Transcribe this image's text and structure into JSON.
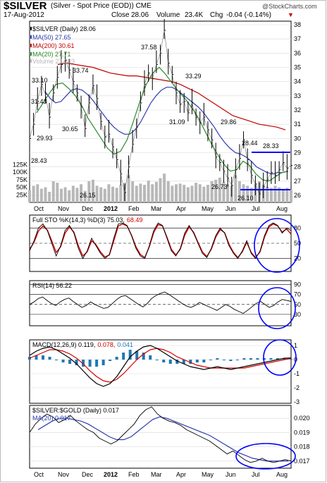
{
  "header": {
    "symbol": "$SILVER",
    "subtitle": "(Silver - Spot Price (EOD)) CME",
    "watermark": "@StockCharts.com",
    "date": "17-Aug-2012",
    "close_label": "Close",
    "close_value": "28.06",
    "volume_label": "Volume",
    "volume_value": "23.4K",
    "chg_label": "Chg",
    "chg_value": "-0.04 (-0.14%)"
  },
  "colors": {
    "price": "#000000",
    "ma50": "#2e3bb0",
    "ma200": "#c00000",
    "ma20": "#2c8a2c",
    "volume": "#b8b8b8",
    "oscillator_fast": "#000000",
    "oscillator_slow": "#d00000",
    "macd_hist": "#1f78b4",
    "annotation": "#0000ff"
  },
  "chart_data": [
    {
      "type": "line",
      "panel": "price",
      "legend": [
        {
          "key": "price",
          "text": "$SILVER (Daily) 28.06"
        },
        {
          "key": "ma50",
          "text": "MA(50) 27.65"
        },
        {
          "key": "ma200",
          "text": "MA(200) 30.61"
        },
        {
          "key": "ma20",
          "text": "MA(20) 27.71"
        },
        {
          "key": "volume",
          "text": "Volume 23,383"
        }
      ],
      "x_labels": [
        "Oct",
        "Nov",
        "Dec",
        "2012",
        "Feb",
        "Mar",
        "Apr",
        "May",
        "Jun",
        "Jul",
        "Aug"
      ],
      "y_ticks": [
        26,
        27,
        28,
        29,
        30,
        31,
        32,
        33,
        34,
        35,
        36,
        37,
        38
      ],
      "ylim": [
        26,
        38
      ],
      "volume_ticks": [
        "125K",
        "100K",
        "75K",
        "50K",
        "25K"
      ],
      "annotations": [
        "33.10",
        "31.43",
        "29.93",
        "30.65",
        "33.74",
        "26.15",
        "37.58",
        "33.29",
        "31.09",
        "29.86",
        "26.73",
        "28.44",
        "28.33",
        "26.10",
        "28.43"
      ],
      "series": [
        {
          "name": "$SILVER (Daily)",
          "values": [
            30.0,
            31.0,
            32.6,
            33.8,
            33.1,
            31.5,
            33.2,
            34.3,
            35.2,
            35.5,
            34.8,
            34.0,
            33.2,
            32.2,
            30.7,
            32.5,
            33.7,
            32.8,
            31.2,
            30.1,
            30.3,
            29.4,
            28.5,
            27.5,
            26.2,
            28.0,
            29.6,
            30.8,
            32.5,
            33.8,
            34.6,
            34.2,
            35.2,
            36.0,
            37.6,
            35.3,
            34.5,
            33.2,
            32.4,
            32.6,
            31.8,
            32.5,
            31.5,
            31.1,
            31.5,
            30.6,
            29.9,
            28.7,
            28.3,
            27.7,
            27.2,
            26.7,
            27.8,
            28.6,
            29.9,
            28.5,
            27.4,
            26.8,
            26.1,
            26.6,
            27.1,
            27.6,
            27.4,
            27.8,
            28.3,
            27.9,
            28.1
          ]
        },
        {
          "name": "MA(50)",
          "values": [
            33.3,
            32.8,
            32.5,
            32.6,
            33.0,
            33.4,
            33.5,
            33.4,
            33.1,
            32.7,
            32.2,
            31.7,
            31.2,
            30.8,
            30.5,
            30.3,
            30.3,
            30.6,
            31.1,
            31.8,
            32.5,
            33.0,
            33.4,
            33.6,
            33.6,
            33.4,
            33.1,
            32.8,
            32.5,
            32.2,
            31.8,
            31.3,
            30.8,
            30.2,
            29.7,
            29.3,
            29.0,
            28.9,
            28.7,
            28.4,
            28.0,
            27.8,
            27.6,
            27.5,
            27.6,
            27.6,
            27.7
          ]
        },
        {
          "name": "MA(200)",
          "values": [
            35.2,
            35.3,
            35.2,
            35.1,
            35.0,
            34.8,
            34.6,
            34.5,
            34.4,
            34.4,
            34.3,
            34.2,
            34.1,
            34.0,
            33.8,
            33.5,
            33.2,
            32.8,
            32.4,
            32.0,
            31.6,
            31.4,
            31.2,
            31.0,
            30.9,
            30.8,
            30.6
          ]
        },
        {
          "name": "MA(20)",
          "values": [
            31.8,
            32.5,
            33.2,
            33.8,
            33.9,
            33.5,
            33.0,
            32.3,
            31.4,
            30.7,
            30.0,
            29.3,
            28.9,
            29.1,
            29.9,
            31.2,
            32.6,
            33.8,
            34.6,
            35.0,
            34.5,
            33.9,
            33.3,
            32.8,
            32.2,
            31.5,
            30.6,
            29.7,
            28.9,
            28.2,
            27.7,
            27.8,
            28.4,
            28.1,
            27.5,
            27.1,
            27.0,
            27.3,
            27.6,
            27.7
          ]
        },
        {
          "name": "Volume",
          "values": [
            40,
            55,
            60,
            45,
            50,
            35,
            70,
            65,
            45,
            50,
            40,
            55,
            48,
            60,
            38,
            70,
            75,
            55,
            50,
            45,
            60,
            52,
            48,
            58,
            65,
            90,
            70,
            55,
            62,
            58,
            72,
            60,
            68,
            80,
            95,
            70,
            55,
            60,
            62,
            58,
            50,
            55,
            65,
            60,
            52,
            58,
            70,
            75,
            82,
            68,
            60,
            55,
            90,
            70,
            60,
            55,
            48,
            62,
            70,
            58,
            52,
            48,
            55,
            50,
            45,
            48,
            42
          ]
        }
      ]
    },
    {
      "type": "line",
      "panel": "full-sto",
      "legend": [
        {
          "key": "oscillator_fast",
          "text": "Full STO %K(14,3) %D(3) 75.03,"
        },
        {
          "key": "oscillator_slow",
          "text": "68.49"
        }
      ],
      "y_ticks": [
        20,
        50,
        80
      ],
      "ylim": [
        0,
        100
      ],
      "series": [
        {
          "name": "%K",
          "values": [
            35,
            55,
            80,
            88,
            75,
            50,
            25,
            45,
            75,
            85,
            70,
            40,
            20,
            35,
            60,
            45,
            30,
            20,
            28,
            60,
            88,
            90,
            85,
            65,
            40,
            25,
            20,
            45,
            75,
            90,
            85,
            60,
            35,
            25,
            40,
            70,
            85,
            70,
            50,
            30,
            22,
            40,
            65,
            80,
            70,
            45,
            30,
            20,
            35,
            55,
            30,
            20,
            35,
            65,
            85,
            90,
            85,
            70,
            80,
            75
          ]
        },
        {
          "name": "%D",
          "values": [
            38,
            52,
            74,
            84,
            76,
            55,
            32,
            43,
            70,
            82,
            72,
            45,
            25,
            33,
            55,
            47,
            33,
            23,
            27,
            55,
            84,
            88,
            84,
            66,
            43,
            28,
            22,
            43,
            71,
            87,
            84,
            62,
            38,
            27,
            38,
            66,
            82,
            72,
            52,
            33,
            24,
            38,
            62,
            77,
            71,
            48,
            32,
            22,
            33,
            52,
            32,
            22,
            33,
            62,
            82,
            88,
            84,
            72,
            78,
            68
          ]
        }
      ]
    },
    {
      "type": "line",
      "panel": "rsi",
      "legend": [
        {
          "key": "price",
          "text": "RSI(14) 56.22"
        }
      ],
      "y_ticks": [
        30,
        50,
        70,
        90
      ],
      "ylim": [
        10,
        95
      ],
      "series": [
        {
          "name": "RSI(14)",
          "values": [
            50,
            55,
            62,
            65,
            58,
            52,
            48,
            55,
            60,
            63,
            56,
            50,
            44,
            48,
            55,
            50,
            46,
            42,
            44,
            52,
            60,
            66,
            68,
            62,
            56,
            50,
            45,
            52,
            62,
            68,
            72,
            75,
            70,
            64,
            58,
            52,
            47,
            44,
            48,
            54,
            50,
            46,
            42,
            38,
            44,
            50,
            46,
            40,
            36,
            32,
            38,
            45,
            52,
            56,
            50,
            44,
            48,
            55,
            60,
            58,
            56
          ]
        }
      ]
    },
    {
      "type": "bar",
      "panel": "macd",
      "legend": [
        {
          "key": "price",
          "text": "MACD(12,26,9) 0.119,"
        },
        {
          "key": "oscillator_slow",
          "text": "0.078,"
        },
        {
          "key": "macd_hist",
          "text": "0.041"
        }
      ],
      "y_ticks": [
        1,
        0,
        -1,
        -2,
        -3
      ],
      "ylim": [
        -3,
        1.3
      ],
      "series": [
        {
          "name": "MACD",
          "values": [
            0.3,
            0.6,
            0.8,
            0.9,
            0.7,
            0.4,
            0.1,
            -0.3,
            -0.8,
            -1.3,
            -1.7,
            -1.9,
            -1.7,
            -1.2,
            -0.5,
            0.2,
            0.6,
            0.9,
            1.0,
            0.8,
            0.5,
            0.2,
            -0.1,
            -0.3,
            -0.5,
            -0.6,
            -0.7,
            -0.6,
            -0.5,
            -0.6,
            -0.7,
            -0.6,
            -0.5,
            -0.4,
            -0.3,
            -0.2,
            -0.1,
            0.0,
            0.1,
            0.12
          ]
        },
        {
          "name": "Signal",
          "values": [
            0.1,
            0.3,
            0.5,
            0.7,
            0.7,
            0.6,
            0.4,
            0.1,
            -0.3,
            -0.8,
            -1.2,
            -1.5,
            -1.6,
            -1.4,
            -1.0,
            -0.5,
            0.0,
            0.4,
            0.7,
            0.8,
            0.7,
            0.5,
            0.2,
            0.0,
            -0.2,
            -0.4,
            -0.5,
            -0.6,
            -0.6,
            -0.6,
            -0.6,
            -0.6,
            -0.6,
            -0.5,
            -0.4,
            -0.3,
            -0.2,
            -0.1,
            0.0,
            0.08
          ]
        },
        {
          "name": "Histogram",
          "values": [
            0.2,
            0.3,
            0.3,
            0.2,
            0.0,
            -0.2,
            -0.3,
            -0.4,
            -0.5,
            -0.5,
            -0.5,
            -0.4,
            -0.1,
            0.2,
            0.5,
            0.7,
            0.6,
            0.5,
            0.3,
            0.0,
            -0.2,
            -0.3,
            -0.3,
            -0.3,
            -0.3,
            -0.2,
            -0.2,
            0.0,
            0.1,
            0.0,
            -0.1,
            0.0,
            0.1,
            0.1,
            0.1,
            0.1,
            0.1,
            0.1,
            0.1,
            0.04
          ]
        }
      ]
    },
    {
      "type": "line",
      "panel": "ratio",
      "legend": [
        {
          "key": "price",
          "text": "$SILVER:$GOLD (Daily) 0.017"
        },
        {
          "key": "ma50",
          "text": "MA(20) 0.017"
        }
      ],
      "y_ticks": [
        0.017,
        0.018,
        0.019,
        0.02
      ],
      "ylim": [
        0.0166,
        0.0208
      ],
      "series": [
        {
          "name": "$SILVER:$GOLD",
          "values": [
            0.019,
            0.0196,
            0.02,
            0.0203,
            0.0201,
            0.0197,
            0.0199,
            0.0202,
            0.0198,
            0.0195,
            0.0192,
            0.019,
            0.0186,
            0.0184,
            0.0182,
            0.0184,
            0.0188,
            0.0192,
            0.0196,
            0.0202,
            0.0206,
            0.0208,
            0.0203,
            0.02,
            0.0198,
            0.0197,
            0.0195,
            0.0192,
            0.019,
            0.0188,
            0.0186,
            0.0184,
            0.0181,
            0.0178,
            0.0175,
            0.0177,
            0.0174,
            0.0171,
            0.0169,
            0.017,
            0.0172,
            0.017,
            0.0169,
            0.017,
            0.0171,
            0.017
          ]
        },
        {
          "name": "MA(20)",
          "values": [
            0.0192,
            0.0195,
            0.0198,
            0.02,
            0.02,
            0.0199,
            0.0198,
            0.0196,
            0.0193,
            0.019,
            0.0187,
            0.0185,
            0.0185,
            0.0187,
            0.0191,
            0.0195,
            0.0199,
            0.0201,
            0.02,
            0.0198,
            0.0196,
            0.0194,
            0.0192,
            0.019,
            0.0188,
            0.0185,
            0.0182,
            0.0179,
            0.0176,
            0.0174,
            0.0172,
            0.0171,
            0.017,
            0.017,
            0.017,
            0.017
          ]
        }
      ]
    }
  ]
}
